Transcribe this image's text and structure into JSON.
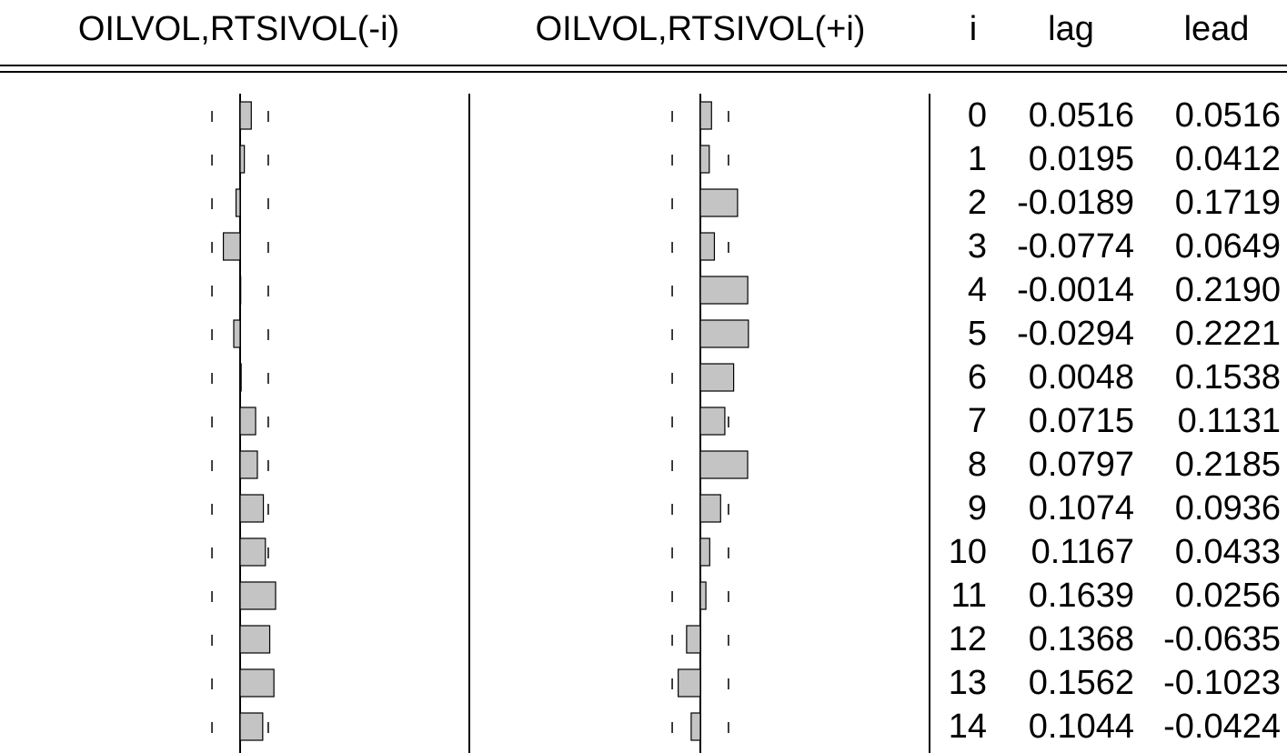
{
  "headers": {
    "left_panel": "OILVOL,RTSIVOL(-i)",
    "right_panel": "OILVOL,RTSIVOL(+i)",
    "index": "i",
    "lag": "lag",
    "lead": "lead"
  },
  "colors": {
    "bar_fill": "#c4c4c4",
    "bar_stroke": "#000000",
    "line": "#000000"
  },
  "chart_data": {
    "type": "bar",
    "orientation": "horizontal",
    "categories": [
      0,
      1,
      2,
      3,
      4,
      5,
      6,
      7,
      8,
      9,
      10,
      11,
      12,
      13,
      14
    ],
    "series": [
      {
        "name": "lag",
        "values": [
          0.0516,
          0.0195,
          -0.0189,
          -0.0774,
          -0.0014,
          -0.0294,
          0.0048,
          0.0715,
          0.0797,
          0.1074,
          0.1167,
          0.1639,
          0.1368,
          0.1562,
          0.1044
        ]
      },
      {
        "name": "lead",
        "values": [
          0.0516,
          0.0412,
          0.1719,
          0.0649,
          0.219,
          0.2221,
          0.1538,
          0.1131,
          0.2185,
          0.0936,
          0.0433,
          0.0256,
          -0.0635,
          -0.1023,
          -0.0424
        ]
      }
    ],
    "confidence_band": 0.13,
    "table": {
      "columns": [
        "i",
        "lag",
        "lead"
      ],
      "rows": [
        [
          "0",
          "0.0516",
          "0.0516"
        ],
        [
          "1",
          "0.0195",
          "0.0412"
        ],
        [
          "2",
          "-0.0189",
          "0.1719"
        ],
        [
          "3",
          "-0.0774",
          "0.0649"
        ],
        [
          "4",
          "-0.0014",
          "0.2190"
        ],
        [
          "5",
          "-0.0294",
          "0.2221"
        ],
        [
          "6",
          "0.0048",
          "0.1538"
        ],
        [
          "7",
          "0.0715",
          "0.1131"
        ],
        [
          "8",
          "0.0797",
          "0.2185"
        ],
        [
          "9",
          "0.1074",
          "0.0936"
        ],
        [
          "10",
          "0.1167",
          "0.0433"
        ],
        [
          "11",
          "0.1639",
          "0.0256"
        ],
        [
          "12",
          "0.1368",
          "-0.0635"
        ],
        [
          "13",
          "0.1562",
          "-0.1023"
        ],
        [
          "14",
          "0.1044",
          "-0.0424"
        ]
      ]
    }
  }
}
